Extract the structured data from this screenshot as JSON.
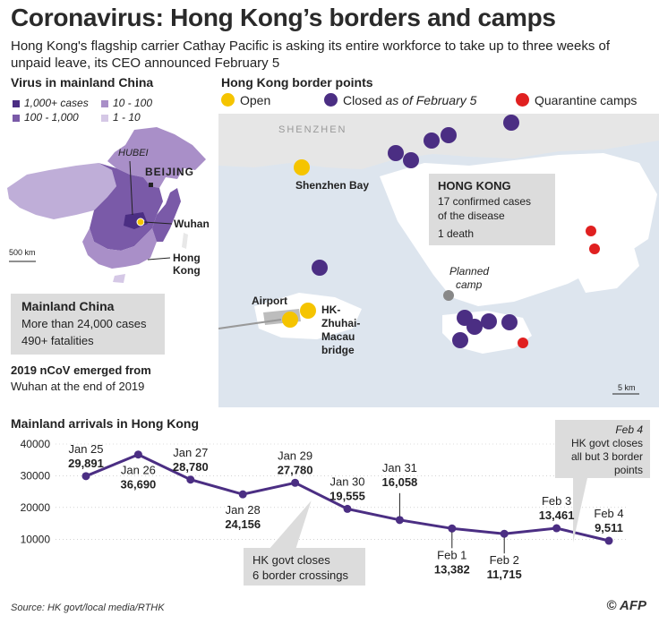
{
  "header": {
    "title": "Coronavirus: Hong Kong’s borders and camps",
    "subtitle": "Hong Kong's flagship carrier Cathay Pacific is asking its entire workforce to take up to three weeks of unpaid leave, its CEO announced February 5"
  },
  "china_panel": {
    "title": "Virus in mainland China",
    "legend": [
      {
        "label": "1,000+ cases",
        "color": "#4b2e83"
      },
      {
        "label": "10 - 100",
        "color": "#a98fc8"
      },
      {
        "label": "100 - 1,000",
        "color": "#7a5aa8"
      },
      {
        "label": "1 - 10",
        "color": "#d5c8e6"
      }
    ],
    "labels": {
      "hubei": "HUBEI",
      "beijing": "BEIJING",
      "wuhan": "Wuhan",
      "hong_kong_1": "Hong",
      "hong_kong_2": "Kong",
      "scale": "500 km"
    },
    "box_title": "Mainland China",
    "box_line1": "More than 24,000 cases",
    "box_line2": "490+ fatalities",
    "note_line1": "2019 nCoV emerged from",
    "note_line2": "Wuhan at the end of 2019"
  },
  "map_panel": {
    "title": "Hong Kong border points",
    "legend": [
      {
        "label": "Open",
        "color": "#f5c400"
      },
      {
        "label": "Closed",
        "suffix": "as of February 5",
        "color": "#4b2e83"
      },
      {
        "label": "Quarantine camps",
        "color": "#e02020"
      }
    ],
    "labels": {
      "shenzhen": "SHENZHEN",
      "shenzhen_bay": "Shenzhen Bay",
      "airport": "Airport",
      "bridge_1": "HK-",
      "bridge_2": "Zhuhai-",
      "bridge_3": "Macau",
      "bridge_4": "bridge",
      "planned_1": "Planned",
      "planned_2": "camp",
      "scale": "5 km"
    },
    "hk_box": {
      "title": "HONG KONG",
      "line1": "17 confirmed cases",
      "line2": "of the disease",
      "line3": "1 death"
    },
    "colors": {
      "water": "#dde5ee",
      "land": "#ffffff",
      "closed": "#4b2e83",
      "open": "#f5c400",
      "camp": "#e02020"
    }
  },
  "chart_data": {
    "type": "line",
    "title": "Mainland arrivals in Hong Kong",
    "categories": [
      "Jan 25",
      "Jan 26",
      "Jan 27",
      "Jan 28",
      "Jan 29",
      "Jan 30",
      "Jan 31",
      "Feb 1",
      "Feb 2",
      "Feb 3",
      "Feb 4"
    ],
    "series": [
      {
        "values": [
          29891,
          36690,
          28780,
          24156,
          27780,
          19555,
          16058,
          13382,
          11715,
          13461,
          9511
        ]
      }
    ],
    "value_labels": [
      "29,891",
      "36,690",
      "28,780",
      "24,156",
      "27,780",
      "19,555",
      "16,058",
      "13,382",
      "11,715",
      "13,461",
      "9,511"
    ],
    "yticks": [
      "40000",
      "30000",
      "20000",
      "10000"
    ],
    "ylim": [
      5000,
      40000
    ],
    "line_color": "#4b2e83",
    "annotations": {
      "a1_line1": "HK govt closes",
      "a1_line2": "6 border crossings",
      "a2_date": "Feb 4",
      "a2_line1": "HK govt closes",
      "a2_line2": "all but 3 border",
      "a2_line3": "points"
    }
  },
  "footer": {
    "source": "Source: HK govt/local media/RTHK",
    "logo": "© AFP"
  }
}
